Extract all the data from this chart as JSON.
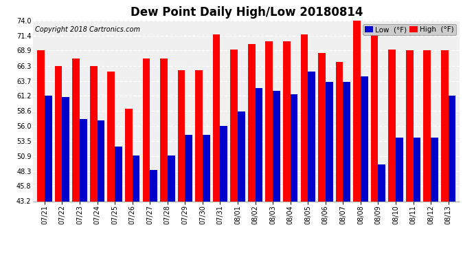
{
  "title": "Dew Point Daily High/Low 20180814",
  "copyright": "Copyright 2018 Cartronics.com",
  "tick_labels": [
    "07/21",
    "07/22",
    "07/23",
    "07/24",
    "07/25",
    "07/26",
    "07/27",
    "07/28",
    "07/29",
    "07/30",
    "07/31",
    "08/01",
    "08/02",
    "08/03",
    "08/04",
    "08/05",
    "08/06",
    "08/07",
    "08/08",
    "08/09",
    "08/10",
    "08/11",
    "08/12",
    "08/13"
  ],
  "high_values": [
    69.0,
    66.3,
    67.5,
    66.3,
    65.3,
    59.0,
    67.5,
    67.5,
    65.5,
    65.5,
    71.6,
    69.1,
    70.0,
    70.5,
    70.5,
    71.6,
    68.5,
    67.0,
    74.0,
    71.5,
    69.1,
    68.9,
    68.9,
    69.0
  ],
  "low_values": [
    61.2,
    61.0,
    57.2,
    57.0,
    52.5,
    51.0,
    48.5,
    51.0,
    54.5,
    54.5,
    56.0,
    58.5,
    62.5,
    62.0,
    61.5,
    65.3,
    63.5,
    63.5,
    64.5,
    49.5,
    54.0,
    54.0,
    54.0,
    61.2
  ],
  "bar_width": 0.42,
  "high_color": "#ff0000",
  "low_color": "#0000cc",
  "bg_color": "#ffffff",
  "plot_bg_color": "#f0f0f0",
  "grid_color": "#ffffff",
  "ylim_min": 43.2,
  "ylim_max": 74.0,
  "yticks": [
    43.2,
    45.8,
    48.3,
    50.9,
    53.5,
    56.0,
    58.6,
    61.2,
    63.7,
    66.3,
    68.9,
    71.4,
    74.0
  ],
  "title_fontsize": 12,
  "tick_fontsize": 7,
  "legend_fontsize": 7.5,
  "copyright_fontsize": 7
}
